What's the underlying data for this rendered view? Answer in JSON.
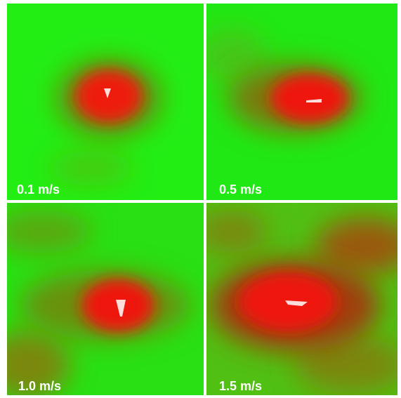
{
  "panels": [
    {
      "label": "0.1 m/s"
    },
    {
      "label": "0.5 m/s"
    },
    {
      "label": "1.0 m/s"
    },
    {
      "label": "1.5 m/s"
    }
  ]
}
